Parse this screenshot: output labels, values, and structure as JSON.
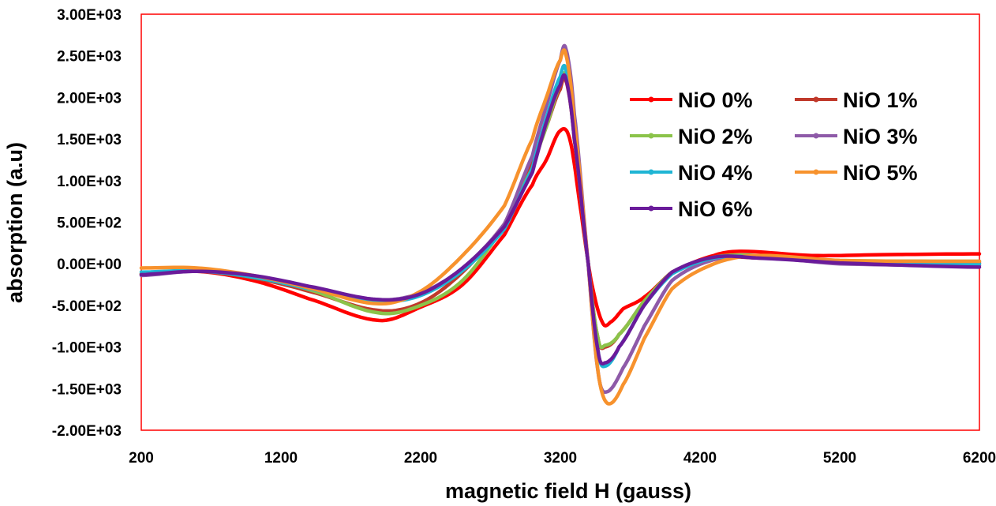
{
  "chart_data": {
    "type": "line",
    "title": "",
    "xlabel": "magnetic field H (gauss)",
    "ylabel": "absorption (a.u)",
    "xlim": [
      200,
      6200
    ],
    "ylim": [
      -2000,
      3000
    ],
    "x_ticks": [
      200,
      1200,
      2200,
      3200,
      4200,
      5200,
      6200
    ],
    "x_tick_labels": [
      "200",
      "1200",
      "2200",
      "3200",
      "4200",
      "5200",
      "6200"
    ],
    "y_ticks": [
      -2000,
      -1500,
      -1000,
      -500,
      0,
      500,
      1000,
      1500,
      2000,
      2500,
      3000
    ],
    "y_tick_labels": [
      "-2.00E+03",
      "-1.50E+03",
      "-1.00E+03",
      "-5.00E+02",
      "0.00E+00",
      "5.00E+02",
      "1.00E+03",
      "1.50E+03",
      "2.00E+03",
      "2.50E+03",
      "3.00E+03"
    ],
    "grid": false,
    "legend_position": "top-right",
    "series": [
      {
        "name": "NiO 0%",
        "color": "#ff0000",
        "points": [
          [
            200,
            -120
          ],
          [
            600,
            -90
          ],
          [
            1000,
            -200
          ],
          [
            1400,
            -420
          ],
          [
            1900,
            -680
          ],
          [
            2200,
            -520
          ],
          [
            2500,
            -250
          ],
          [
            2800,
            350
          ],
          [
            3000,
            950
          ],
          [
            3100,
            1250
          ],
          [
            3200,
            1600
          ],
          [
            3270,
            1480
          ],
          [
            3350,
            600
          ],
          [
            3420,
            -200
          ],
          [
            3500,
            -700
          ],
          [
            3560,
            -700
          ],
          [
            3650,
            -540
          ],
          [
            3800,
            -400
          ],
          [
            4000,
            -100
          ],
          [
            4300,
            100
          ],
          [
            4500,
            150
          ],
          [
            5000,
            100
          ],
          [
            5500,
            110
          ],
          [
            6200,
            120
          ]
        ]
      },
      {
        "name": "NiO 1%",
        "color": "#c0392b",
        "points": [
          [
            200,
            -130
          ],
          [
            600,
            -90
          ],
          [
            1000,
            -170
          ],
          [
            1400,
            -330
          ],
          [
            1900,
            -560
          ],
          [
            2200,
            -470
          ],
          [
            2500,
            -100
          ],
          [
            2800,
            480
          ],
          [
            3000,
            1200
          ],
          [
            3100,
            1650
          ],
          [
            3200,
            2100
          ],
          [
            3240,
            2200
          ],
          [
            3300,
            1500
          ],
          [
            3400,
            0
          ],
          [
            3470,
            -900
          ],
          [
            3520,
            -1000
          ],
          [
            3620,
            -850
          ],
          [
            3800,
            -450
          ],
          [
            4000,
            -100
          ],
          [
            4300,
            70
          ],
          [
            4600,
            70
          ],
          [
            5200,
            20
          ],
          [
            6200,
            10
          ]
        ]
      },
      {
        "name": "NiO 2%",
        "color": "#8bc34a",
        "points": [
          [
            200,
            -120
          ],
          [
            600,
            -85
          ],
          [
            1000,
            -160
          ],
          [
            1400,
            -310
          ],
          [
            1900,
            -590
          ],
          [
            2200,
            -500
          ],
          [
            2500,
            -200
          ],
          [
            2800,
            450
          ],
          [
            3000,
            1150
          ],
          [
            3100,
            1650
          ],
          [
            3200,
            2150
          ],
          [
            3240,
            2250
          ],
          [
            3300,
            1500
          ],
          [
            3400,
            0
          ],
          [
            3470,
            -900
          ],
          [
            3520,
            -980
          ],
          [
            3620,
            -850
          ],
          [
            3800,
            -450
          ],
          [
            4000,
            -100
          ],
          [
            4300,
            80
          ],
          [
            4600,
            100
          ],
          [
            5200,
            40
          ],
          [
            6200,
            30
          ]
        ]
      },
      {
        "name": "NiO 3%",
        "color": "#8e5aa8",
        "points": [
          [
            200,
            -140
          ],
          [
            600,
            -90
          ],
          [
            1000,
            -150
          ],
          [
            1400,
            -280
          ],
          [
            1900,
            -430
          ],
          [
            2200,
            -350
          ],
          [
            2500,
            -50
          ],
          [
            2800,
            480
          ],
          [
            3000,
            1300
          ],
          [
            3100,
            1900
          ],
          [
            3200,
            2450
          ],
          [
            3240,
            2580
          ],
          [
            3300,
            1800
          ],
          [
            3400,
            0
          ],
          [
            3470,
            -1300
          ],
          [
            3530,
            -1540
          ],
          [
            3650,
            -1250
          ],
          [
            3800,
            -750
          ],
          [
            4000,
            -200
          ],
          [
            4300,
            50
          ],
          [
            4600,
            80
          ],
          [
            5200,
            0
          ],
          [
            6200,
            -20
          ]
        ]
      },
      {
        "name": "NiO 4%",
        "color": "#1fb5d4",
        "points": [
          [
            200,
            -100
          ],
          [
            600,
            -85
          ],
          [
            1000,
            -160
          ],
          [
            1400,
            -300
          ],
          [
            1900,
            -450
          ],
          [
            2200,
            -380
          ],
          [
            2500,
            -80
          ],
          [
            2800,
            420
          ],
          [
            3000,
            1150
          ],
          [
            3100,
            1750
          ],
          [
            3200,
            2250
          ],
          [
            3240,
            2330
          ],
          [
            3300,
            1550
          ],
          [
            3400,
            0
          ],
          [
            3470,
            -1050
          ],
          [
            3520,
            -1230
          ],
          [
            3620,
            -1000
          ],
          [
            3800,
            -500
          ],
          [
            4000,
            -120
          ],
          [
            4300,
            70
          ],
          [
            4600,
            80
          ],
          [
            5200,
            20
          ],
          [
            6200,
            0
          ]
        ]
      },
      {
        "name": "NiO 5%",
        "color": "#f7922d",
        "points": [
          [
            200,
            -50
          ],
          [
            600,
            -50
          ],
          [
            1000,
            -140
          ],
          [
            1400,
            -290
          ],
          [
            1900,
            -480
          ],
          [
            2200,
            -330
          ],
          [
            2500,
            100
          ],
          [
            2800,
            700
          ],
          [
            3000,
            1500
          ],
          [
            3100,
            2000
          ],
          [
            3200,
            2450
          ],
          [
            3240,
            2510
          ],
          [
            3300,
            1700
          ],
          [
            3400,
            0
          ],
          [
            3470,
            -1300
          ],
          [
            3540,
            -1680
          ],
          [
            3650,
            -1450
          ],
          [
            3800,
            -900
          ],
          [
            4000,
            -300
          ],
          [
            4300,
            0
          ],
          [
            4600,
            100
          ],
          [
            5200,
            40
          ],
          [
            6200,
            30
          ]
        ]
      },
      {
        "name": "NiO 6%",
        "color": "#6a1b9a",
        "points": [
          [
            200,
            -130
          ],
          [
            600,
            -90
          ],
          [
            1000,
            -140
          ],
          [
            1400,
            -270
          ],
          [
            1900,
            -430
          ],
          [
            2200,
            -360
          ],
          [
            2500,
            -50
          ],
          [
            2800,
            450
          ],
          [
            3000,
            1100
          ],
          [
            3100,
            1700
          ],
          [
            3200,
            2150
          ],
          [
            3240,
            2220
          ],
          [
            3300,
            1500
          ],
          [
            3400,
            0
          ],
          [
            3470,
            -1050
          ],
          [
            3520,
            -1190
          ],
          [
            3620,
            -1000
          ],
          [
            3800,
            -500
          ],
          [
            4000,
            -100
          ],
          [
            4300,
            80
          ],
          [
            4600,
            70
          ],
          [
            5200,
            10
          ],
          [
            6200,
            -40
          ]
        ]
      }
    ]
  }
}
